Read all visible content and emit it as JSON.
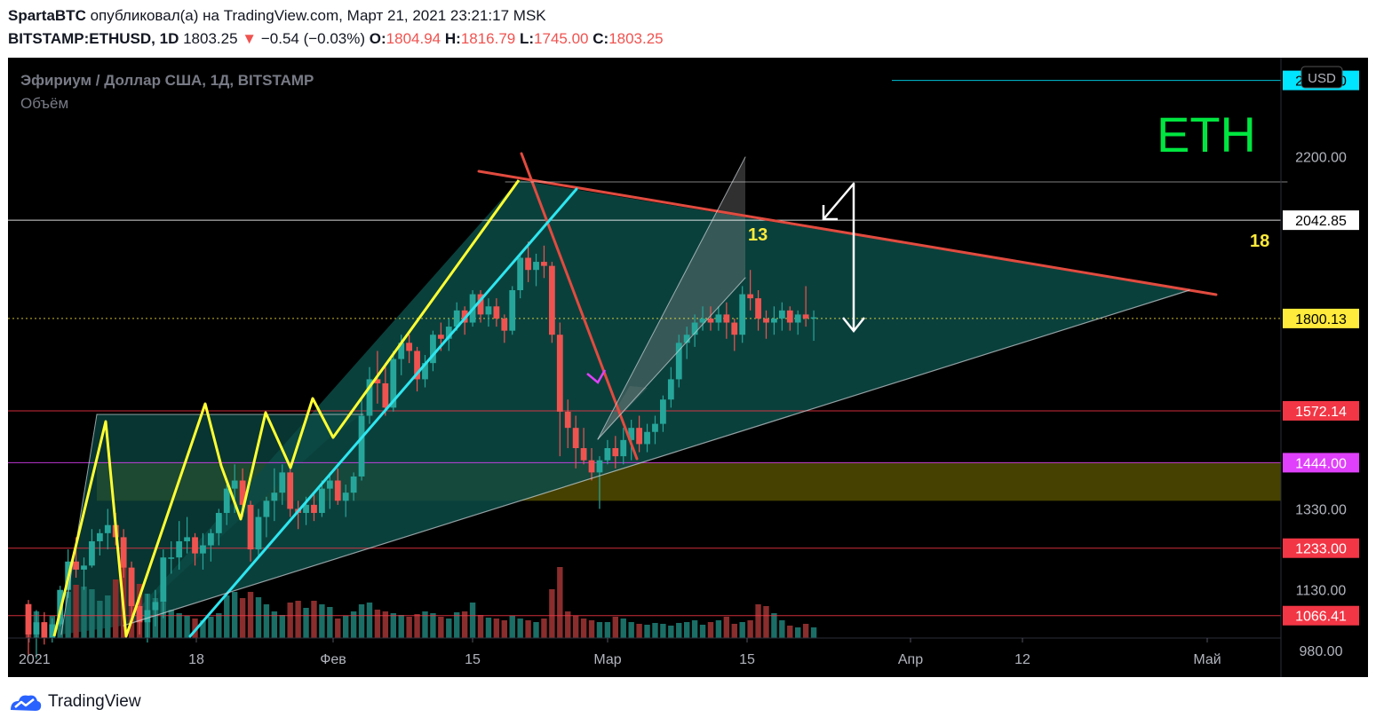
{
  "header": {
    "author": "SpartaBTC",
    "published_text": "опубликовал(а) на TradingView.com, Март 21, 2021 23:21:17 MSK",
    "symbol": "BITSTAMP:ETHUSD, 1D",
    "last_price": "1803.25",
    "down_arrow": "▼",
    "change": "−0.54 (−0.03%)",
    "o_label": "O:",
    "o_value": "1804.94",
    "h_label": "H:",
    "h_value": "1816.79",
    "l_label": "L:",
    "l_value": "1745.00",
    "c_label": "C:",
    "c_value": "1803.25"
  },
  "legend": {
    "title": "Эфириум / Доллар США, 1Д, BITSTAMP",
    "volume": "Объём"
  },
  "annotations": {
    "eth_label": "ETH",
    "wave_13": "13",
    "wave_18": "18",
    "currency_badge": "USD"
  },
  "footer": {
    "brand": "TradingView"
  },
  "colors": {
    "background": "#000000",
    "bull": "#26a69a",
    "bear": "#ef5350",
    "eth_text": "#00e640",
    "triangle_fill": "#0c4b46",
    "support_zone": "#4a4500",
    "trend_red": "#e24b3f",
    "trend_cyan": "#2ee6f0",
    "zigzag": "#ffff33",
    "price_badge": "#ffeb3b",
    "line_magenta": "#e040fb"
  },
  "chart_data": {
    "type": "candlestick",
    "axis_range_price": [
      930,
      2420
    ],
    "price_ticks": [
      "980.00",
      "1130.00",
      "1330.00",
      "2200.00"
    ],
    "date_ticks": [
      "2021",
      "18",
      "Фев",
      "15",
      "Мар",
      "15",
      "Апр",
      "12",
      "Май"
    ],
    "price_levels": [
      {
        "value": 2388.0,
        "label": "2388.00",
        "color": "#00e5ff"
      },
      {
        "value": 2042.85,
        "label": "2042.85",
        "color": "#ffffff"
      },
      {
        "value": 1800.13,
        "label": "1800.13",
        "color": "#ffeb3b"
      },
      {
        "value": 1572.14,
        "label": "1572.14",
        "color": "#f23645"
      },
      {
        "value": 1444.0,
        "label": "1444.00",
        "color": "#e040fb"
      },
      {
        "value": 1233.0,
        "label": "1233.00",
        "color": "#f23645"
      },
      {
        "value": 1066.41,
        "label": "1066.41",
        "color": "#f23645"
      }
    ],
    "candles_ohlc": [
      [
        1095,
        1105,
        970,
        1020
      ],
      [
        1020,
        1080,
        960,
        1050
      ],
      [
        1050,
        1075,
        995,
        1010
      ],
      [
        1010,
        1060,
        1000,
        1045
      ],
      [
        1045,
        1140,
        1040,
        1130
      ],
      [
        1130,
        1230,
        1110,
        1200
      ],
      [
        1200,
        1260,
        1160,
        1180
      ],
      [
        1180,
        1210,
        1130,
        1190
      ],
      [
        1190,
        1280,
        1185,
        1250
      ],
      [
        1250,
        1280,
        1215,
        1270
      ],
      [
        1270,
        1330,
        1230,
        1290
      ],
      [
        1290,
        1320,
        1240,
        1260
      ],
      [
        1260,
        1280,
        1160,
        1185
      ],
      [
        1185,
        1200,
        1050,
        1090
      ],
      [
        1090,
        1110,
        1020,
        1050
      ],
      [
        1050,
        1120,
        1000,
        1080
      ],
      [
        1080,
        1130,
        1040,
        1100
      ],
      [
        1100,
        1230,
        1060,
        1210
      ],
      [
        1210,
        1250,
        1170,
        1210
      ],
      [
        1210,
        1300,
        1180,
        1250
      ],
      [
        1250,
        1310,
        1220,
        1260
      ],
      [
        1260,
        1270,
        1190,
        1220
      ],
      [
        1220,
        1270,
        1180,
        1240
      ],
      [
        1240,
        1280,
        1200,
        1270
      ],
      [
        1270,
        1330,
        1240,
        1320
      ],
      [
        1320,
        1390,
        1290,
        1380
      ],
      [
        1380,
        1440,
        1320,
        1400
      ],
      [
        1400,
        1430,
        1310,
        1340
      ],
      [
        1340,
        1350,
        1200,
        1230
      ],
      [
        1230,
        1330,
        1210,
        1310
      ],
      [
        1310,
        1360,
        1260,
        1350
      ],
      [
        1350,
        1430,
        1300,
        1370
      ],
      [
        1370,
        1440,
        1340,
        1420
      ],
      [
        1420,
        1440,
        1310,
        1330
      ],
      [
        1330,
        1350,
        1280,
        1320
      ],
      [
        1320,
        1360,
        1290,
        1340
      ],
      [
        1340,
        1370,
        1300,
        1320
      ],
      [
        1320,
        1400,
        1310,
        1380
      ],
      [
        1380,
        1420,
        1330,
        1400
      ],
      [
        1400,
        1430,
        1340,
        1350
      ],
      [
        1350,
        1390,
        1310,
        1370
      ],
      [
        1370,
        1420,
        1350,
        1410
      ],
      [
        1410,
        1600,
        1400,
        1560
      ],
      [
        1560,
        1680,
        1540,
        1650
      ],
      [
        1650,
        1720,
        1590,
        1640
      ],
      [
        1640,
        1690,
        1560,
        1580
      ],
      [
        1580,
        1720,
        1570,
        1700
      ],
      [
        1700,
        1760,
        1660,
        1740
      ],
      [
        1740,
        1760,
        1690,
        1720
      ],
      [
        1720,
        1730,
        1620,
        1650
      ],
      [
        1650,
        1710,
        1630,
        1690
      ],
      [
        1690,
        1770,
        1670,
        1760
      ],
      [
        1760,
        1790,
        1720,
        1750
      ],
      [
        1750,
        1800,
        1720,
        1780
      ],
      [
        1780,
        1840,
        1770,
        1820
      ],
      [
        1820,
        1830,
        1760,
        1790
      ],
      [
        1790,
        1870,
        1780,
        1860
      ],
      [
        1860,
        1870,
        1790,
        1810
      ],
      [
        1810,
        1850,
        1780,
        1830
      ],
      [
        1830,
        1850,
        1780,
        1800
      ],
      [
        1800,
        1810,
        1740,
        1770
      ],
      [
        1770,
        1880,
        1760,
        1870
      ],
      [
        1870,
        1960,
        1850,
        1950
      ],
      [
        1950,
        1990,
        1890,
        1920
      ],
      [
        1920,
        1960,
        1880,
        1940
      ],
      [
        1940,
        1980,
        1900,
        1930
      ],
      [
        1930,
        1940,
        1740,
        1760
      ],
      [
        1760,
        1790,
        1460,
        1570
      ],
      [
        1570,
        1600,
        1480,
        1530
      ],
      [
        1530,
        1560,
        1430,
        1480
      ],
      [
        1480,
        1530,
        1440,
        1450
      ],
      [
        1450,
        1480,
        1400,
        1420
      ],
      [
        1420,
        1460,
        1330,
        1450
      ],
      [
        1450,
        1500,
        1440,
        1480
      ],
      [
        1480,
        1510,
        1430,
        1460
      ],
      [
        1460,
        1530,
        1440,
        1500
      ],
      [
        1500,
        1550,
        1450,
        1530
      ],
      [
        1530,
        1560,
        1470,
        1490
      ],
      [
        1490,
        1540,
        1470,
        1520
      ],
      [
        1520,
        1560,
        1490,
        1540
      ],
      [
        1540,
        1610,
        1520,
        1600
      ],
      [
        1600,
        1680,
        1580,
        1650
      ],
      [
        1650,
        1760,
        1630,
        1740
      ],
      [
        1740,
        1780,
        1700,
        1760
      ],
      [
        1760,
        1810,
        1730,
        1790
      ],
      [
        1790,
        1830,
        1770,
        1800
      ],
      [
        1800,
        1830,
        1770,
        1790
      ],
      [
        1790,
        1830,
        1770,
        1810
      ],
      [
        1810,
        1840,
        1750,
        1790
      ],
      [
        1790,
        1800,
        1720,
        1760
      ],
      [
        1760,
        1880,
        1740,
        1860
      ],
      [
        1860,
        1920,
        1820,
        1850
      ],
      [
        1850,
        1870,
        1770,
        1800
      ],
      [
        1800,
        1820,
        1750,
        1790
      ],
      [
        1790,
        1830,
        1760,
        1800
      ],
      [
        1800,
        1840,
        1770,
        1820
      ],
      [
        1820,
        1830,
        1770,
        1790
      ],
      [
        1790,
        1820,
        1760,
        1810
      ],
      [
        1810,
        1880,
        1780,
        1800
      ],
      [
        1800,
        1820,
        1745,
        1803
      ]
    ],
    "volume": [
      0.22,
      0.3,
      0.18,
      0.25,
      0.4,
      0.52,
      0.6,
      0.58,
      0.55,
      0.42,
      0.48,
      0.66,
      0.82,
      0.72,
      0.61,
      0.5,
      0.45,
      0.4,
      0.32,
      0.28,
      0.25,
      0.22,
      0.2,
      0.24,
      0.28,
      0.48,
      0.52,
      0.45,
      0.52,
      0.46,
      0.38,
      0.3,
      0.26,
      0.4,
      0.42,
      0.34,
      0.42,
      0.38,
      0.35,
      0.22,
      0.25,
      0.3,
      0.38,
      0.4,
      0.32,
      0.3,
      0.28,
      0.26,
      0.24,
      0.27,
      0.3,
      0.28,
      0.24,
      0.22,
      0.29,
      0.3,
      0.4,
      0.26,
      0.23,
      0.22,
      0.2,
      0.25,
      0.22,
      0.2,
      0.18,
      0.22,
      0.55,
      0.8,
      0.3,
      0.25,
      0.22,
      0.2,
      0.18,
      0.18,
      0.24,
      0.22,
      0.18,
      0.16,
      0.15,
      0.17,
      0.16,
      0.14,
      0.17,
      0.18,
      0.2,
      0.15,
      0.18,
      0.2,
      0.24,
      0.16,
      0.18,
      0.2,
      0.38,
      0.36,
      0.28,
      0.2,
      0.14,
      0.12,
      0.16,
      0.12
    ]
  }
}
